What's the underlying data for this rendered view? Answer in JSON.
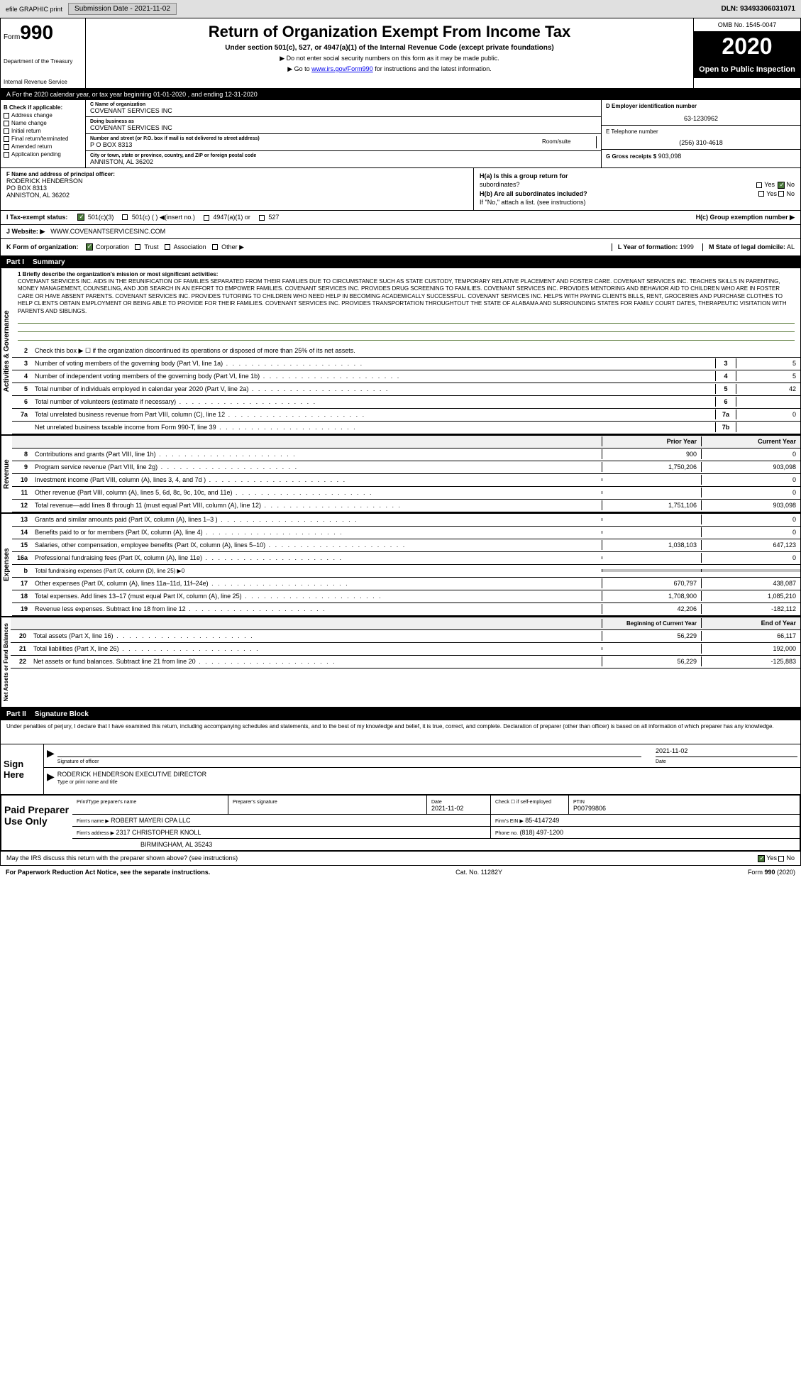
{
  "header": {
    "efile": "efile GRAPHIC print",
    "submission_label": "Submission Date - 2021-11-02",
    "dln": "DLN: 93493306031071"
  },
  "form": {
    "prefix": "Form",
    "number": "990",
    "dept1": "Department of the Treasury",
    "dept2": "Internal Revenue Service",
    "title": "Return of Organization Exempt From Income Tax",
    "subtitle": "Under section 501(c), 527, or 4947(a)(1) of the Internal Revenue Code (except private foundations)",
    "instr1": "▶ Do not enter social security numbers on this form as it may be made public.",
    "instr2_pre": "▶ Go to ",
    "instr2_link": "www.irs.gov/Form990",
    "instr2_post": " for instructions and the latest information.",
    "omb": "OMB No. 1545-0047",
    "year": "2020",
    "open": "Open to Public Inspection"
  },
  "period": "A For the 2020 calendar year, or tax year beginning 01-01-2020    , and ending 12-31-2020",
  "checkB": {
    "label": "B Check if applicable:",
    "items": [
      "Address change",
      "Name change",
      "Initial return",
      "Final return/terminated",
      "Amended return",
      "Application pending"
    ]
  },
  "colC": {
    "name_label": "C Name of organization",
    "name": "COVENANT SERVICES INC",
    "dba_label": "Doing business as",
    "dba": "COVENANT SERVICES INC",
    "addr_label": "Number and street (or P.O. box if mail is not delivered to street address)",
    "addr": "P O BOX 8313",
    "room_label": "Room/suite",
    "city_label": "City or town, state or province, country, and ZIP or foreign postal code",
    "city": "ANNISTON, AL  36202"
  },
  "colD": {
    "ein_label": "D Employer identification number",
    "ein": "63-1230962",
    "phone_label": "E Telephone number",
    "phone": "(256) 310-4618",
    "gross_label": "G Gross receipts $",
    "gross": "903,098"
  },
  "rowF": {
    "label": "F  Name and address of principal officer:",
    "name": "RODERICK HENDERSON",
    "addr1": "PO BOX 8313",
    "addr2": "ANNISTON, AL  36202"
  },
  "rowH": {
    "ha": "H(a)  Is this a group return for",
    "ha2": "subordinates?",
    "hb": "H(b)  Are all subordinates included?",
    "hb2": "If \"No,\" attach a list. (see instructions)",
    "hc": "H(c)  Group exemption number ▶",
    "yes": "Yes",
    "no": "No"
  },
  "rowI": {
    "label": "I    Tax-exempt status:",
    "opt1": "501(c)(3)",
    "opt2": "501(c) (  ) ◀(insert no.)",
    "opt3": "4947(a)(1) or",
    "opt4": "527"
  },
  "rowJ": {
    "label": "J   Website: ▶",
    "val": "WWW.COVENANTSERVICESINC.COM"
  },
  "rowK": {
    "label": "K Form of organization:",
    "opts": [
      "Corporation",
      "Trust",
      "Association",
      "Other ▶"
    ],
    "l_label": "L Year of formation:",
    "l_val": "1999",
    "m_label": "M State of legal domicile:",
    "m_val": "AL"
  },
  "part1": {
    "hdr": "Part I",
    "title": "Summary",
    "mission_label": "1   Briefly describe the organization's mission or most significant activities:",
    "mission": "COVENANT SERVICES INC. AIDS IN THE REUNIFICATION OF FAMILIES SEPARATED FROM THEIR FAMILIES DUE TO CIRCUMSTANCE SUCH AS STATE CUSTODY, TEMPORARY RELATIVE PLACEMENT AND FOSTER CARE. COVENANT SERVICES INC. TEACHES SKILLS IN PARENTING, MONEY MANAGEMENT, COUNSELING, AND JOB SEARCH IN AN EFFORT TO EMPOWER FAMILIES. COVENANT SERVICES INC. PROVIDES DRUG SCREENING TO FAMILIES. COVENANT SERVICES INC. PROVIDES MENTORING AND BEHAVIOR AID TO CHILDREN WHO ARE IN FOSTER CARE OR HAVE ABSENT PARENTS. COVENANT SERVICES INC. PROVIDES TUTORING TO CHILDREN WHO NEED HELP IN BECOMING ACADEMICALLY SUCCESSFUL. COVENANT SERVICES INC. HELPS WITH PAYING CLIENTS BILLS, RENT, GROCERIES AND PURCHASE CLOTHES TO HELP CLIENTS OBTAIN EMPLOYMENT OR BEING ABLE TO PROVIDE FOR THEIR FAMILIES. COVENANT SERVICES INC. PROVIDES TRANSPORTATION THROUGHTOUT THE STATE OF ALABAMA AND SURROUNDING STATES FOR FAMILY COURT DATES, THERAPEUTIC VISITATION WITH PARENTS AND SIBLINGS."
  },
  "gov_lines": [
    {
      "n": "2",
      "t": "Check this box ▶ ☐ if the organization discontinued its operations or disposed of more than 25% of its net assets."
    },
    {
      "n": "3",
      "t": "Number of voting members of the governing body (Part VI, line 1a)",
      "box": "3",
      "v": "5"
    },
    {
      "n": "4",
      "t": "Number of independent voting members of the governing body (Part VI, line 1b)",
      "box": "4",
      "v": "5"
    },
    {
      "n": "5",
      "t": "Total number of individuals employed in calendar year 2020 (Part V, line 2a)",
      "box": "5",
      "v": "42"
    },
    {
      "n": "6",
      "t": "Total number of volunteers (estimate if necessary)",
      "box": "6",
      "v": ""
    },
    {
      "n": "7a",
      "t": "Total unrelated business revenue from Part VIII, column (C), line 12",
      "box": "7a",
      "v": "0"
    },
    {
      "n": "",
      "t": "Net unrelated business taxable income from Form 990-T, line 39",
      "box": "7b",
      "v": ""
    }
  ],
  "col_hdrs": {
    "prior": "Prior Year",
    "current": "Current Year"
  },
  "rev_lines": [
    {
      "n": "8",
      "t": "Contributions and grants (Part VIII, line 1h)",
      "p": "900",
      "c": "0"
    },
    {
      "n": "9",
      "t": "Program service revenue (Part VIII, line 2g)",
      "p": "1,750,206",
      "c": "903,098"
    },
    {
      "n": "10",
      "t": "Investment income (Part VIII, column (A), lines 3, 4, and 7d )",
      "p": "",
      "c": "0"
    },
    {
      "n": "11",
      "t": "Other revenue (Part VIII, column (A), lines 5, 6d, 8c, 9c, 10c, and 11e)",
      "p": "",
      "c": "0"
    },
    {
      "n": "12",
      "t": "Total revenue—add lines 8 through 11 (must equal Part VIII, column (A), line 12)",
      "p": "1,751,106",
      "c": "903,098"
    }
  ],
  "exp_lines": [
    {
      "n": "13",
      "t": "Grants and similar amounts paid (Part IX, column (A), lines 1–3 )",
      "p": "",
      "c": "0"
    },
    {
      "n": "14",
      "t": "Benefits paid to or for members (Part IX, column (A), line 4)",
      "p": "",
      "c": "0"
    },
    {
      "n": "15",
      "t": "Salaries, other compensation, employee benefits (Part IX, column (A), lines 5–10)",
      "p": "1,038,103",
      "c": "647,123"
    },
    {
      "n": "16a",
      "t": "Professional fundraising fees (Part IX, column (A), line 11e)",
      "p": "",
      "c": "0"
    },
    {
      "n": "b",
      "t": "Total fundraising expenses (Part IX, column (D), line 25) ▶0",
      "shade": true
    },
    {
      "n": "17",
      "t": "Other expenses (Part IX, column (A), lines 11a–11d, 11f–24e)",
      "p": "670,797",
      "c": "438,087"
    },
    {
      "n": "18",
      "t": "Total expenses. Add lines 13–17 (must equal Part IX, column (A), line 25)",
      "p": "1,708,900",
      "c": "1,085,210"
    },
    {
      "n": "19",
      "t": "Revenue less expenses. Subtract line 18 from line 12",
      "p": "42,206",
      "c": "-182,112"
    }
  ],
  "net_hdrs": {
    "begin": "Beginning of Current Year",
    "end": "End of Year"
  },
  "net_lines": [
    {
      "n": "20",
      "t": "Total assets (Part X, line 16)",
      "p": "56,229",
      "c": "66,117"
    },
    {
      "n": "21",
      "t": "Total liabilities (Part X, line 26)",
      "p": "",
      "c": "192,000"
    },
    {
      "n": "22",
      "t": "Net assets or fund balances. Subtract line 21 from line 20",
      "p": "56,229",
      "c": "-125,883"
    }
  ],
  "part2": {
    "hdr": "Part II",
    "title": "Signature Block",
    "decl": "Under penalties of perjury, I declare that I have examined this return, including accompanying schedules and statements, and to the best of my knowledge and belief, it is true, correct, and complete. Declaration of preparer (other than officer) is based on all information of which preparer has any knowledge."
  },
  "sign": {
    "label": "Sign Here",
    "sig_label": "Signature of officer",
    "date_label": "Date",
    "date": "2021-11-02",
    "name": "RODERICK HENDERSON  EXECUTIVE DIRECTOR",
    "name_label": "Type or print name and title"
  },
  "paid": {
    "label": "Paid Preparer Use Only",
    "h1": "Print/Type preparer's name",
    "h2": "Preparer's signature",
    "h3": "Date",
    "h3v": "2021-11-02",
    "h4": "Check ☐ if self-employed",
    "h5": "PTIN",
    "h5v": "P00799806",
    "firm_label": "Firm's name     ▶",
    "firm": "ROBERT MAYERI CPA LLC",
    "ein_label": "Firm's EIN ▶",
    "ein": "85-4147249",
    "addr_label": "Firm's address ▶",
    "addr1": "2317 CHRISTOPHER KNOLL",
    "addr2": "BIRMINGHAM, AL  35243",
    "phone_label": "Phone no.",
    "phone": "(818) 497-1200",
    "discuss": "May the IRS discuss this return with the preparer shown above? (see instructions)",
    "yes": "Yes",
    "no": "No"
  },
  "footer": {
    "left": "For Paperwork Reduction Act Notice, see the separate instructions.",
    "mid": "Cat. No. 11282Y",
    "right": "Form 990 (2020)"
  },
  "vert": {
    "gov": "Activities & Governance",
    "rev": "Revenue",
    "exp": "Expenses",
    "net": "Net Assets or Fund Balances"
  }
}
